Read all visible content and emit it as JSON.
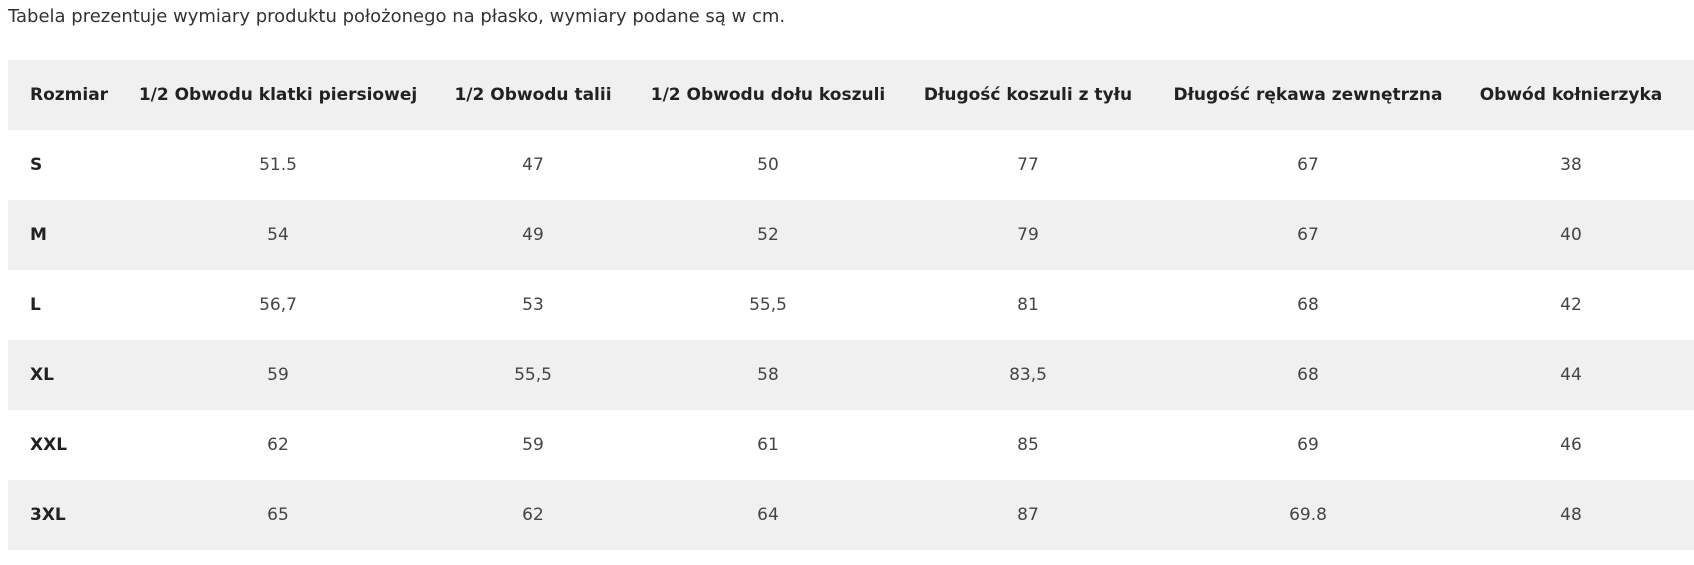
{
  "intro_text": "Tabela prezentuje wymiary produktu położonego na płasko, wymiary podane są w cm.",
  "table": {
    "headers": [
      "Rozmiar",
      "1/2 Obwodu klatki piersiowej",
      "1/2 Obwodu talii",
      "1/2 Obwodu dołu koszuli",
      "Długość koszuli z tyłu",
      "Długość rękawa zewnętrzna",
      "Obwód kołnierzyka"
    ],
    "rows": [
      [
        "S",
        "51.5",
        "47",
        "50",
        "77",
        "67",
        "38"
      ],
      [
        "M",
        "54",
        "49",
        "52",
        "79",
        "67",
        "40"
      ],
      [
        "L",
        "56,7",
        "53",
        "55,5",
        "81",
        "68",
        "42"
      ],
      [
        "XL",
        "59",
        "55,5",
        "58",
        "83,5",
        "68",
        "44"
      ],
      [
        "XXL",
        "62",
        "59",
        "61",
        "85",
        "69",
        "46"
      ],
      [
        "3XL",
        "65",
        "62",
        "64",
        "87",
        "69.8",
        "48"
      ]
    ]
  }
}
